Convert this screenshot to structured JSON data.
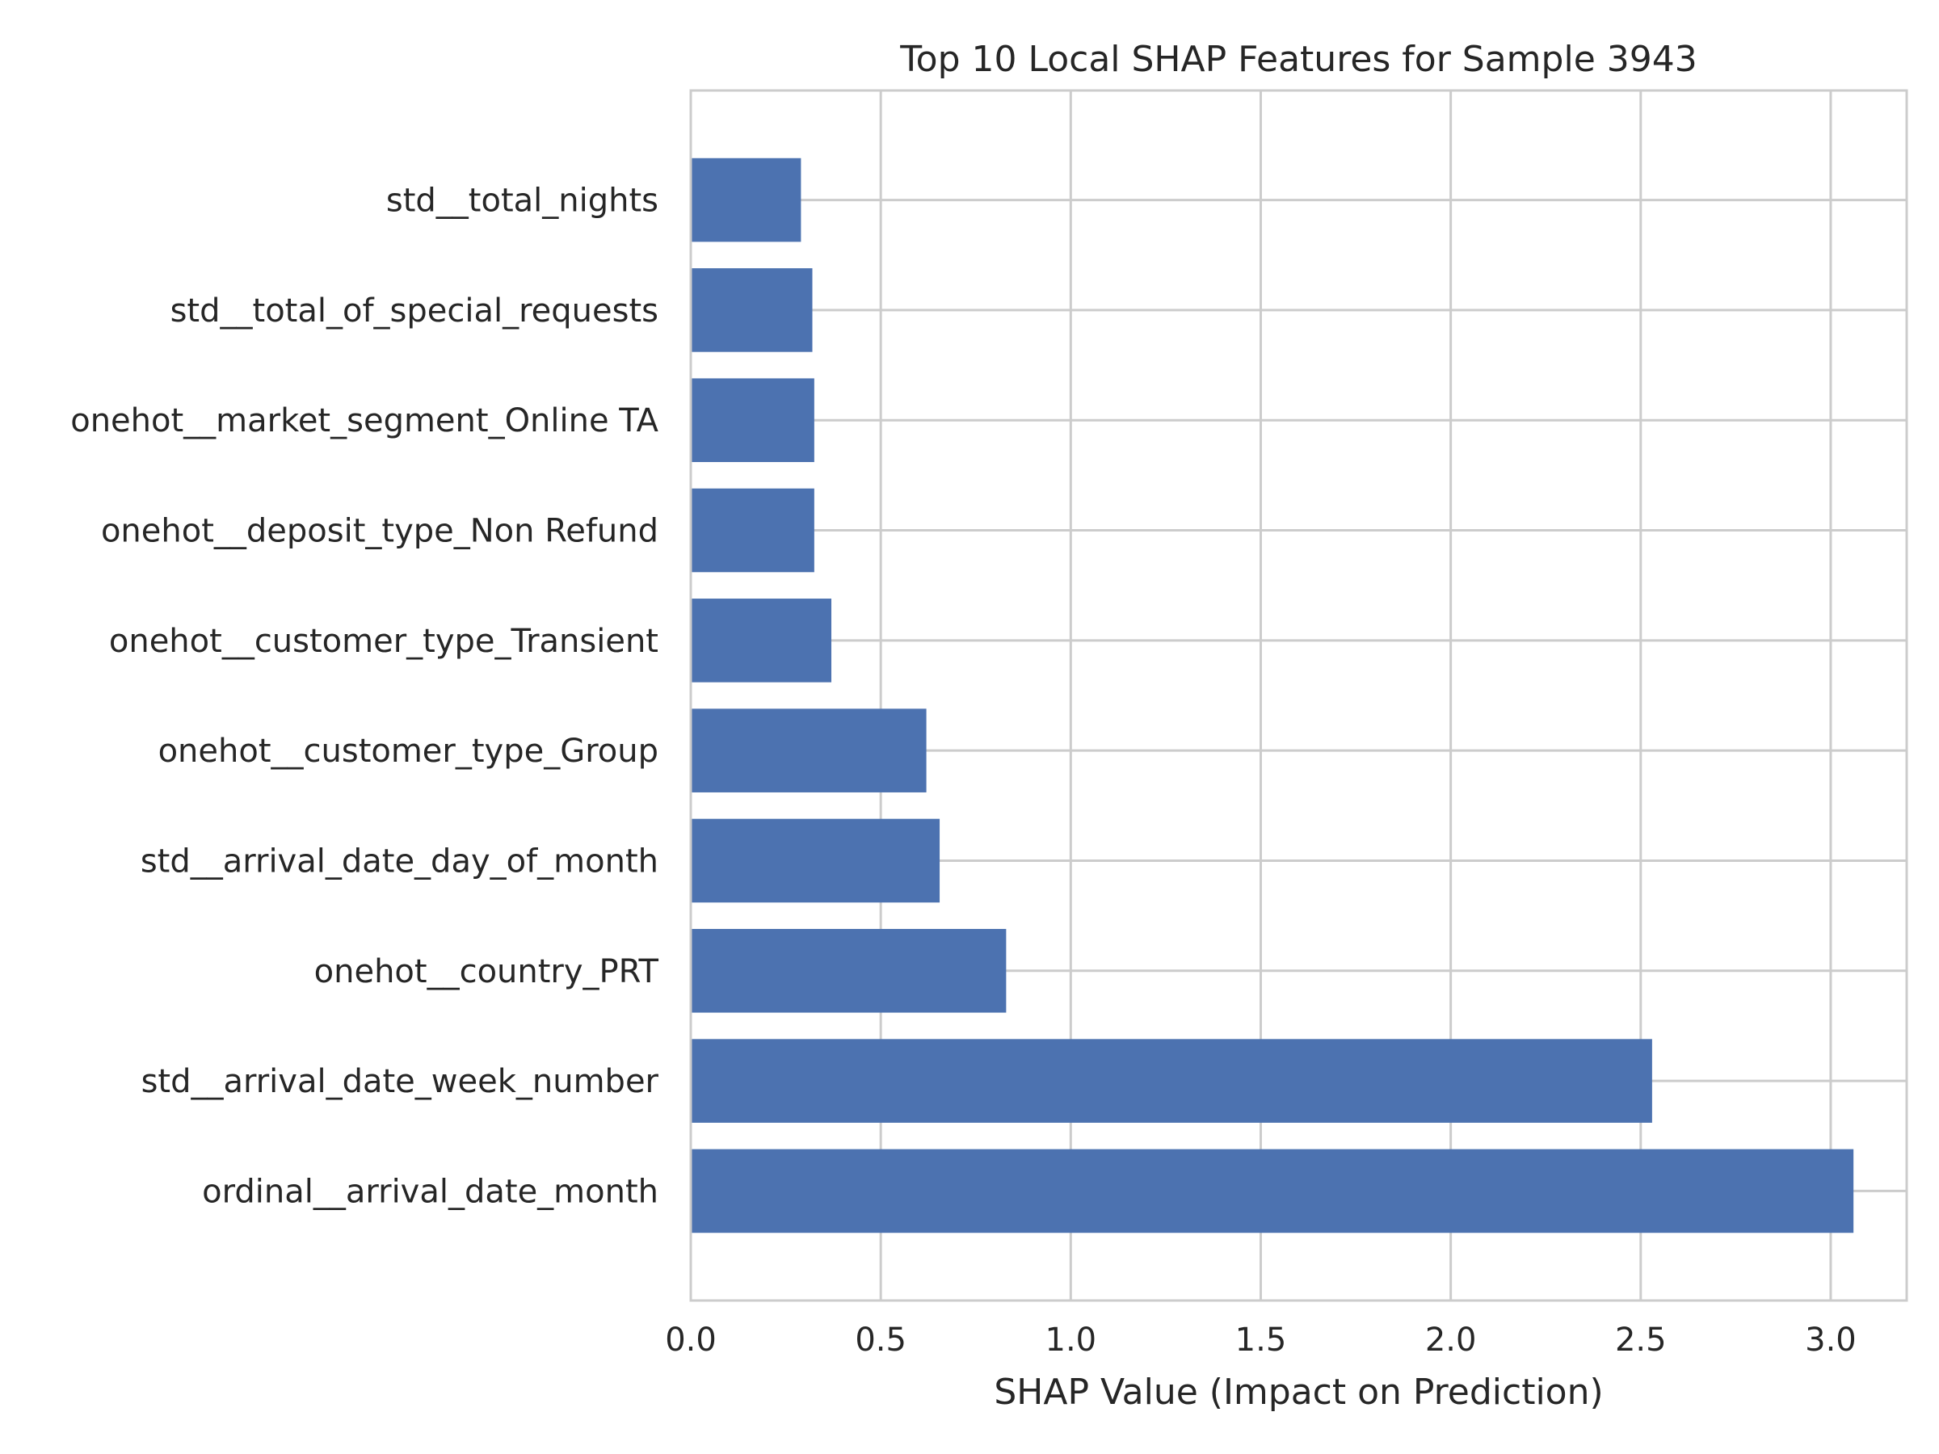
{
  "chart_data": {
    "type": "bar",
    "orientation": "horizontal",
    "title": "Top 10 Local SHAP Features for Sample 3943",
    "xlabel": "SHAP Value (Impact on Prediction)",
    "ylabel": "",
    "xlim": [
      0,
      3.2
    ],
    "x_ticks": [
      {
        "value": 0.0,
        "label": "0.0"
      },
      {
        "value": 0.5,
        "label": "0.5"
      },
      {
        "value": 1.0,
        "label": "1.0"
      },
      {
        "value": 1.5,
        "label": "1.5"
      },
      {
        "value": 2.0,
        "label": "2.0"
      },
      {
        "value": 2.5,
        "label": "2.5"
      },
      {
        "value": 3.0,
        "label": "3.0"
      }
    ],
    "grid": true,
    "bar_color": "#4c72b0",
    "grid_color": "#cccccc",
    "categories": [
      "std__total_nights",
      "std__total_of_special_requests",
      "onehot__market_segment_Online TA",
      "onehot__deposit_type_Non Refund",
      "onehot__customer_type_Transient",
      "onehot__customer_type_Group",
      "std__arrival_date_day_of_month",
      "onehot__country_PRT",
      "std__arrival_date_week_number",
      "ordinal__arrival_date_month"
    ],
    "values": [
      0.29,
      0.32,
      0.325,
      0.325,
      0.37,
      0.62,
      0.655,
      0.83,
      2.53,
      3.06
    ]
  }
}
